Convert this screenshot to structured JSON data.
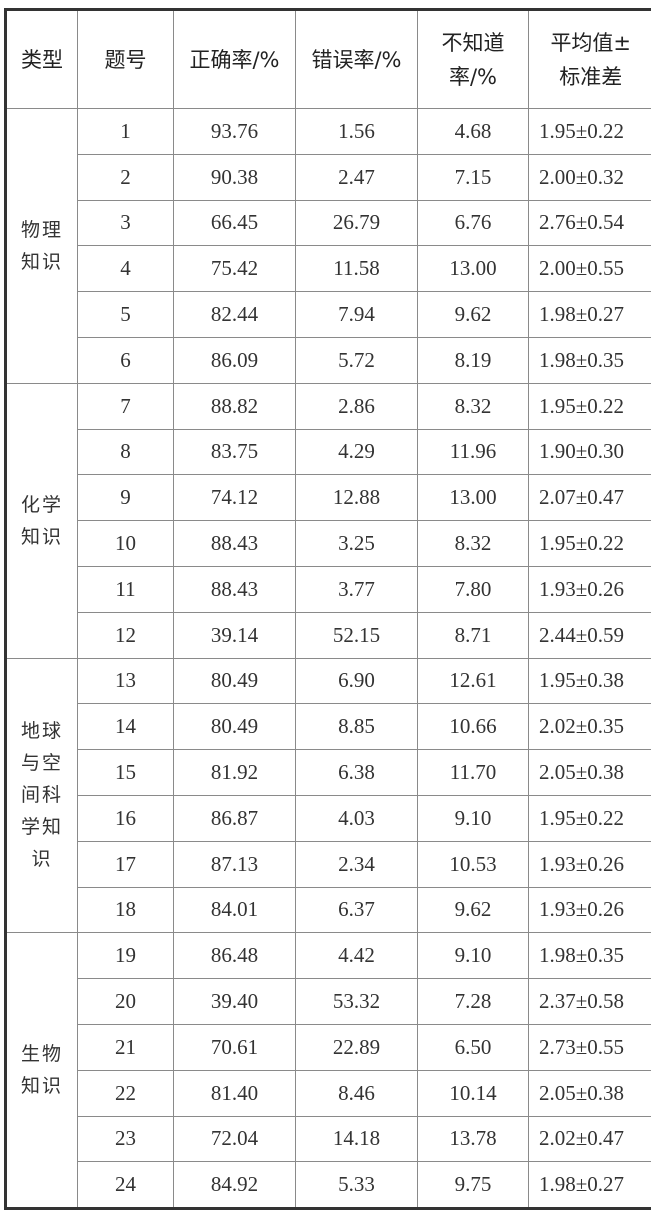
{
  "headers": [
    "类型",
    "题号",
    "正确率/%",
    "错误率/%",
    "不知道\n率/%",
    "平均值±\n标准差"
  ],
  "groups": [
    {
      "type": "物理知识",
      "rows": [
        [
          "1",
          "93.76",
          "1.56",
          "4.68",
          "1.95±0.22"
        ],
        [
          "2",
          "90.38",
          "2.47",
          "7.15",
          "2.00±0.32"
        ],
        [
          "3",
          "66.45",
          "26.79",
          "6.76",
          "2.76±0.54"
        ],
        [
          "4",
          "75.42",
          "11.58",
          "13.00",
          "2.00±0.55"
        ],
        [
          "5",
          "82.44",
          "7.94",
          "9.62",
          "1.98±0.27"
        ],
        [
          "6",
          "86.09",
          "5.72",
          "8.19",
          "1.98±0.35"
        ]
      ]
    },
    {
      "type": "化学知识",
      "rows": [
        [
          "7",
          "88.82",
          "2.86",
          "8.32",
          "1.95±0.22"
        ],
        [
          "8",
          "83.75",
          "4.29",
          "11.96",
          "1.90±0.30"
        ],
        [
          "9",
          "74.12",
          "12.88",
          "13.00",
          "2.07±0.47"
        ],
        [
          "10",
          "88.43",
          "3.25",
          "8.32",
          "1.95±0.22"
        ],
        [
          "11",
          "88.43",
          "3.77",
          "7.80",
          "1.93±0.26"
        ],
        [
          "12",
          "39.14",
          "52.15",
          "8.71",
          "2.44±0.59"
        ]
      ]
    },
    {
      "type": "地球与空间科学知识",
      "rows": [
        [
          "13",
          "80.49",
          "6.90",
          "12.61",
          "1.95±0.38"
        ],
        [
          "14",
          "80.49",
          "8.85",
          "10.66",
          "2.02±0.35"
        ],
        [
          "15",
          "81.92",
          "6.38",
          "11.70",
          "2.05±0.38"
        ],
        [
          "16",
          "86.87",
          "4.03",
          "9.10",
          "1.95±0.22"
        ],
        [
          "17",
          "87.13",
          "2.34",
          "10.53",
          "1.93±0.26"
        ],
        [
          "18",
          "84.01",
          "6.37",
          "9.62",
          "1.93±0.26"
        ]
      ]
    },
    {
      "type": "生物知识",
      "rows": [
        [
          "19",
          "86.48",
          "4.42",
          "9.10",
          "1.98±0.35"
        ],
        [
          "20",
          "39.40",
          "53.32",
          "7.28",
          "2.37±0.58"
        ],
        [
          "21",
          "70.61",
          "22.89",
          "6.50",
          "2.73±0.55"
        ],
        [
          "22",
          "81.40",
          "8.46",
          "10.14",
          "2.05±0.38"
        ],
        [
          "23",
          "72.04",
          "14.18",
          "13.78",
          "2.02±0.47"
        ],
        [
          "24",
          "84.92",
          "5.33",
          "9.75",
          "1.98±0.27"
        ]
      ]
    }
  ]
}
